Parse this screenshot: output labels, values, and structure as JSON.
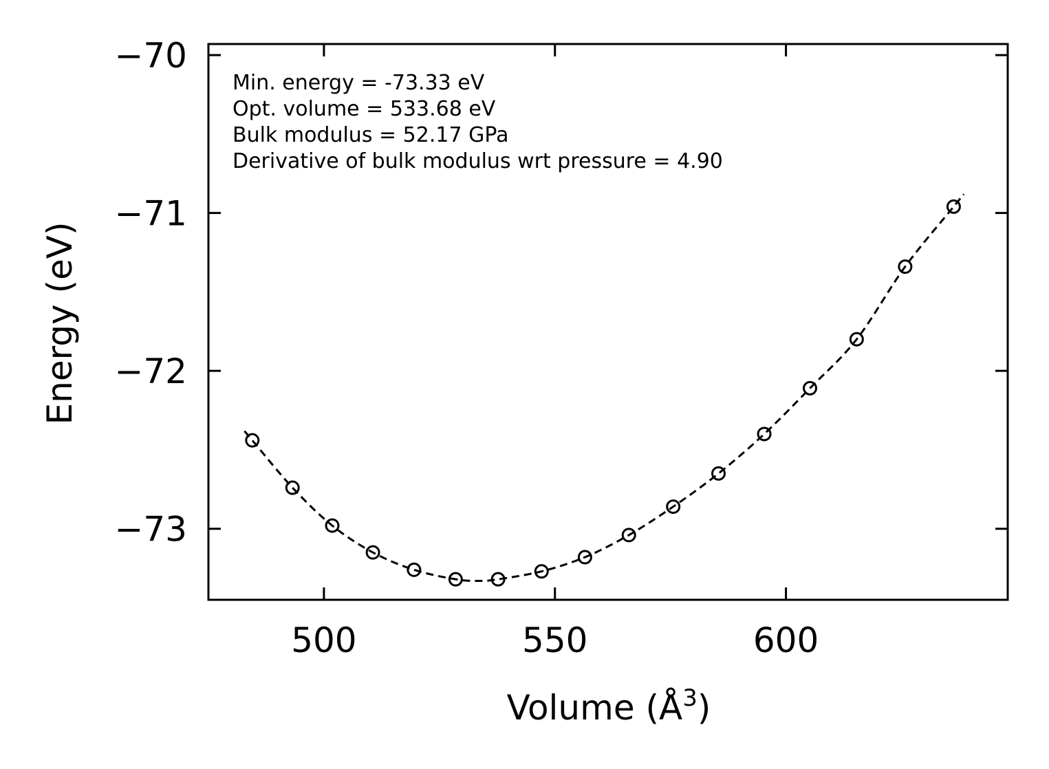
{
  "chart_data": {
    "type": "scatter",
    "title": "",
    "xlabel": "Volume (Å",
    "xlabel_sup": "3",
    "xlabel_end": ")",
    "ylabel": "Energy (eV)",
    "xlim": [
      475,
      648
    ],
    "ylim": [
      -73.45,
      -69.93
    ],
    "xticks": [
      500,
      550,
      600
    ],
    "xtick_labels": [
      "500",
      "550",
      "600"
    ],
    "yticks": [
      -70,
      -71,
      -72,
      -73
    ],
    "ytick_labels": [
      "−70",
      "−71",
      "−72",
      "−73"
    ],
    "grid": false,
    "legend": "none",
    "series": [
      {
        "name": "data",
        "marker": "open-circle",
        "x": [
          484.5,
          493.2,
          501.8,
          510.6,
          519.5,
          528.5,
          537.7,
          547.1,
          556.5,
          566.0,
          575.6,
          585.4,
          595.3,
          605.2,
          615.3,
          625.8,
          636.3
        ],
        "y": [
          -72.44,
          -72.74,
          -72.98,
          -73.15,
          -73.26,
          -73.32,
          -73.32,
          -73.27,
          -73.18,
          -73.04,
          -72.86,
          -72.65,
          -72.4,
          -72.11,
          -71.8,
          -71.34,
          -70.96
        ]
      },
      {
        "name": "fit",
        "line": "dashed",
        "E0": -73.33,
        "V0": 533.68,
        "Vmin": 482.8,
        "Vmax": 638.5
      }
    ],
    "annotations": [
      "Min. energy = -73.33 eV",
      "Opt. volume = 533.68 eV",
      "Bulk modulus = 52.17 GPa",
      "Derivative of bulk modulus wrt pressure = 4.90"
    ]
  }
}
